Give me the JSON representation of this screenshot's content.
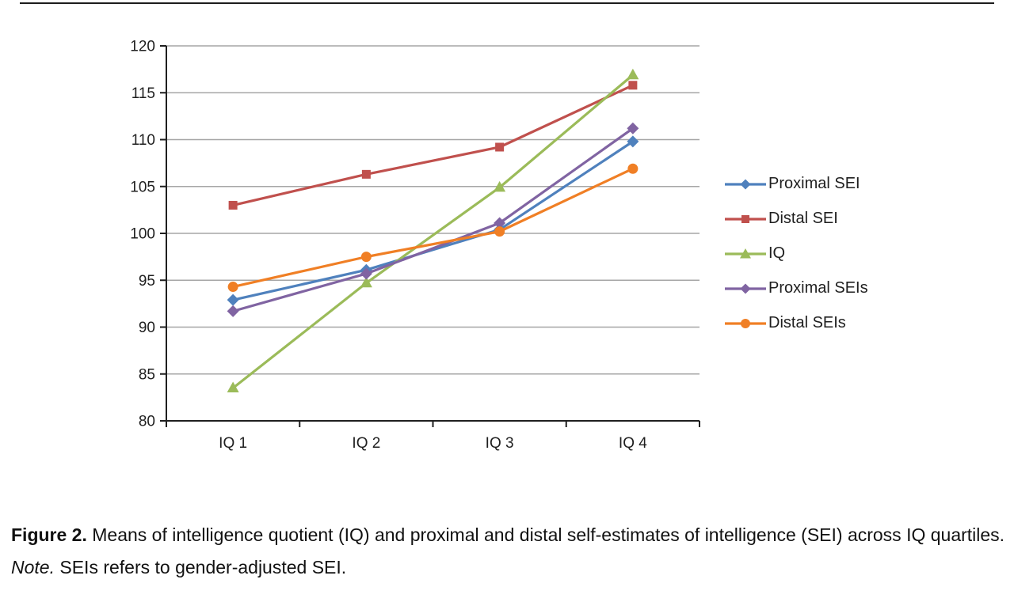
{
  "figure": {
    "caption": {
      "label": "Figure 2.",
      "body": "Means of intelligence quotient (IQ) and proximal and distal self-estimates of intelligence (SEI) across IQ quartiles.",
      "note_label": "Note.",
      "note_body": "SEIs refers to gender-adjusted SEI."
    }
  },
  "chart_data": {
    "type": "line",
    "title": "",
    "xlabel": "",
    "ylabel": "",
    "categories": [
      "IQ 1",
      "IQ 2",
      "IQ 3",
      "IQ 4"
    ],
    "series": [
      {
        "name": "Proximal SEI",
        "color": "#4F81BD",
        "marker": "diamond",
        "values": [
          92.9,
          96.1,
          100.4,
          109.8
        ]
      },
      {
        "name": "Distal SEI",
        "color": "#C0504D",
        "marker": "square",
        "values": [
          103.0,
          106.3,
          109.2,
          115.8
        ]
      },
      {
        "name": "IQ",
        "color": "#9BBB59",
        "marker": "triangle",
        "values": [
          83.5,
          94.7,
          104.9,
          116.9
        ]
      },
      {
        "name": "Proximal SEIs",
        "color": "#8064A2",
        "marker": "diamond",
        "values": [
          91.7,
          95.7,
          101.1,
          111.2
        ]
      },
      {
        "name": "Distal SEIs",
        "color": "#F07F25",
        "marker": "circle",
        "values": [
          94.3,
          97.5,
          100.2,
          106.9
        ]
      }
    ],
    "ylim": [
      80,
      120
    ],
    "ytick_step": 5,
    "grid": true,
    "legend_position": "right",
    "style": {
      "grid_color": "#A6A6A6",
      "axis_color": "#1F1F1F",
      "text_color": "#1F1F1F"
    }
  }
}
